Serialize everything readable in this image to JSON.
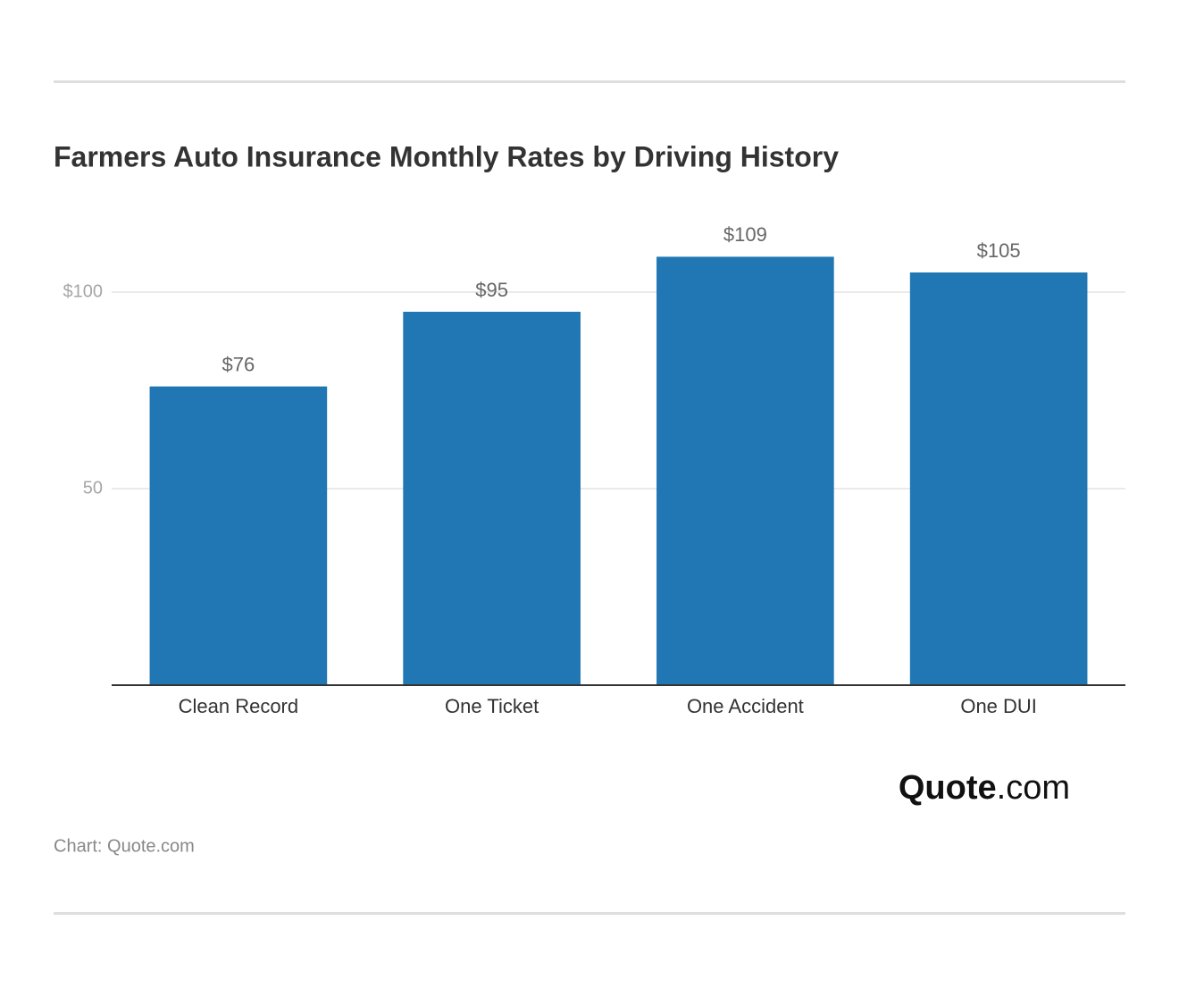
{
  "chart_data": {
    "type": "bar",
    "title": "Farmers Auto Insurance Monthly Rates by Driving History",
    "categories": [
      "Clean Record",
      "One Ticket",
      "One Accident",
      "One DUI"
    ],
    "values": [
      76,
      95,
      109,
      105
    ],
    "value_labels": [
      "$76",
      "$95",
      "$109",
      "$105"
    ],
    "color": "#2077b4",
    "ylim": [
      0,
      120
    ],
    "yticks": [
      50,
      {
        "value": 100,
        "label": "$100"
      }
    ],
    "grid": true,
    "logo_brand": "Quote",
    "logo_suffix": ".com",
    "source": "Chart: Quote.com"
  }
}
